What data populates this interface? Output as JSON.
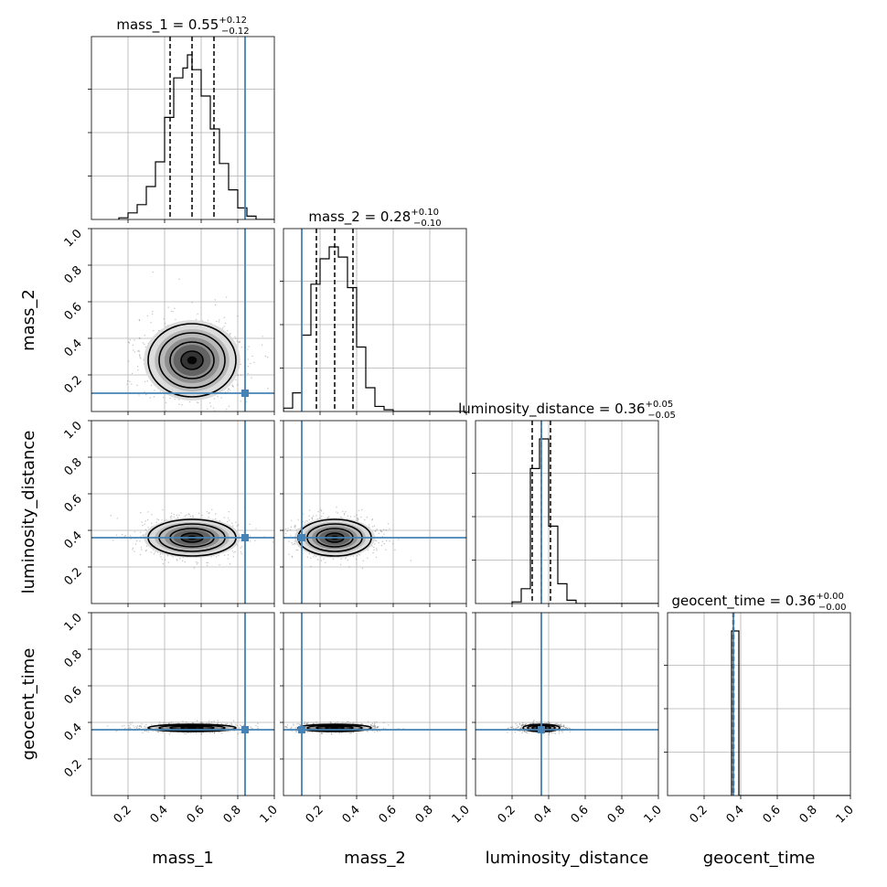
{
  "chart_data": {
    "type": "corner",
    "parameters": [
      "mass_1",
      "mass_2",
      "luminosity_distance",
      "geocent_time"
    ],
    "axis_range": [
      0,
      1
    ],
    "tick_values": [
      0.2,
      0.4,
      0.6,
      0.8,
      1.0
    ],
    "tick_labels": [
      "0.2",
      "0.4",
      "0.6",
      "0.8",
      "1.0"
    ],
    "grid": true,
    "colors": {
      "truth": "#4682b4",
      "hist": "#000000",
      "grid": "#b0b0b0"
    },
    "titles": [
      {
        "param": "mass_1",
        "prefix": "mass_1 = ",
        "value": "0.55",
        "plus": "+0.12",
        "minus": "−0.12"
      },
      {
        "param": "mass_2",
        "prefix": "mass_2 = ",
        "value": "0.28",
        "plus": "+0.10",
        "minus": "−0.10"
      },
      {
        "param": "luminosity_distance",
        "prefix": "luminosity_distance = ",
        "value": "0.36",
        "plus": "+0.05",
        "minus": "−0.05"
      },
      {
        "param": "geocent_time",
        "prefix": "geocent_time = ",
        "value": "0.36",
        "plus": "+0.00",
        "minus": "−0.00"
      }
    ],
    "truths": {
      "mass_1": 0.84,
      "mass_2": 0.1,
      "luminosity_distance": 0.36,
      "geocent_time": 0.36
    },
    "quantiles": {
      "mass_1": [
        0.43,
        0.55,
        0.67
      ],
      "mass_2": [
        0.18,
        0.28,
        0.38
      ],
      "luminosity_distance": [
        0.31,
        0.36,
        0.41
      ],
      "geocent_time": [
        0.358,
        0.36,
        0.362
      ]
    },
    "histograms": {
      "mass_1": {
        "bin_edges": [
          0.15,
          0.2,
          0.25,
          0.3,
          0.35,
          0.4,
          0.45,
          0.5,
          0.525,
          0.55,
          0.6,
          0.65,
          0.7,
          0.75,
          0.8,
          0.85,
          0.9,
          0.95
        ],
        "counts": [
          1,
          4,
          9,
          20,
          35,
          62,
          86,
          92,
          100,
          91,
          75,
          55,
          34,
          18,
          7,
          2,
          0
        ]
      },
      "mass_2": {
        "bin_edges": [
          0.0,
          0.05,
          0.1,
          0.15,
          0.2,
          0.25,
          0.3,
          0.35,
          0.4,
          0.45,
          0.5,
          0.55,
          0.6,
          0.9
        ],
        "counts": [
          2,
          11,
          45,
          75,
          90,
          97,
          91,
          73,
          38,
          14,
          3,
          1,
          0
        ]
      },
      "luminosity_distance": {
        "bin_edges": [
          0.2,
          0.25,
          0.3,
          0.35,
          0.4,
          0.45,
          0.5,
          0.55,
          0.6
        ],
        "counts": [
          1,
          9,
          82,
          100,
          47,
          12,
          2,
          0
        ]
      },
      "geocent_time": {
        "bin_edges": [
          0.35,
          0.37,
          0.39,
          0.41
        ],
        "counts": [
          100,
          100,
          0
        ]
      }
    },
    "density_2d": [
      {
        "row": "mass_2",
        "col": "mass_1",
        "center": [
          0.55,
          0.28
        ],
        "spread": [
          0.12,
          0.1
        ]
      },
      {
        "row": "luminosity_distance",
        "col": "mass_1",
        "center": [
          0.55,
          0.36
        ],
        "spread": [
          0.12,
          0.05
        ]
      },
      {
        "row": "luminosity_distance",
        "col": "mass_2",
        "center": [
          0.28,
          0.36
        ],
        "spread": [
          0.1,
          0.05
        ]
      },
      {
        "row": "geocent_time",
        "col": "mass_1",
        "center": [
          0.55,
          0.37
        ],
        "spread": [
          0.12,
          0.01
        ]
      },
      {
        "row": "geocent_time",
        "col": "mass_2",
        "center": [
          0.28,
          0.37
        ],
        "spread": [
          0.1,
          0.01
        ]
      },
      {
        "row": "geocent_time",
        "col": "luminosity_distance",
        "center": [
          0.36,
          0.37
        ],
        "spread": [
          0.05,
          0.01
        ]
      }
    ],
    "contour_levels_sigma": [
      0.5,
      1.0,
      1.5,
      2.0
    ]
  }
}
